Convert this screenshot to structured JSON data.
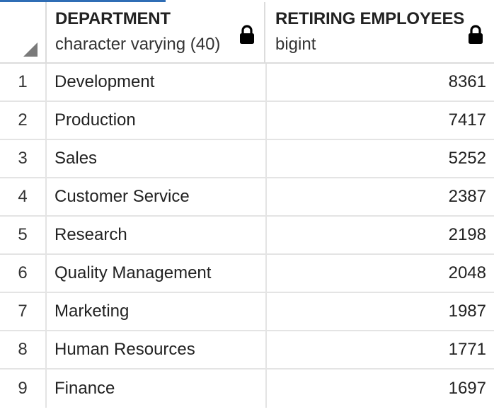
{
  "columns": [
    {
      "name": "DEPARTMENT",
      "type": "character varying (40)",
      "icon": "lock-icon"
    },
    {
      "name": "RETIRING EMPLOYEES",
      "type": "bigint",
      "icon": "lock-icon"
    }
  ],
  "rows": [
    {
      "num": "1",
      "department": "Development",
      "count": "8361"
    },
    {
      "num": "2",
      "department": "Production",
      "count": "7417"
    },
    {
      "num": "3",
      "department": "Sales",
      "count": "5252"
    },
    {
      "num": "4",
      "department": "Customer Service",
      "count": "2387"
    },
    {
      "num": "5",
      "department": "Research",
      "count": "2198"
    },
    {
      "num": "6",
      "department": "Quality Management",
      "count": "2048"
    },
    {
      "num": "7",
      "department": "Marketing",
      "count": "1987"
    },
    {
      "num": "8",
      "department": "Human Resources",
      "count": "1771"
    },
    {
      "num": "9",
      "department": "Finance",
      "count": "1697"
    }
  ],
  "colors": {
    "accent": "#2f6db5",
    "gridline": "#e4e4e4",
    "corner_marker": "#7a7a7a"
  }
}
